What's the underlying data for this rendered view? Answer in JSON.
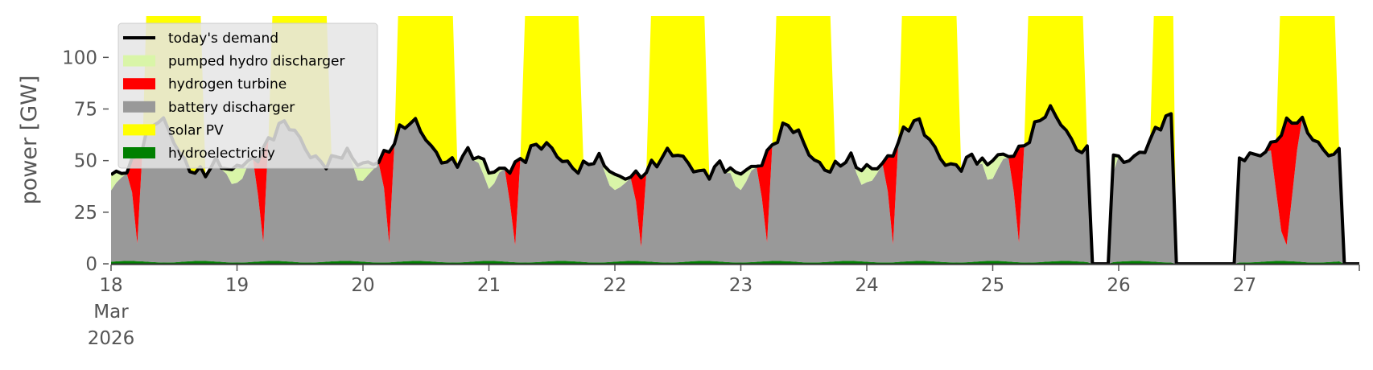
{
  "chart_data": {
    "type": "area",
    "title": "",
    "ylabel": "power [GW]",
    "xlabel": "",
    "ylim": [
      0,
      120
    ],
    "xlim": [
      0,
      9.95
    ],
    "x_unit": "days since 18 Mar 2026",
    "x_ticks": [
      {
        "x": 0,
        "label": "18",
        "sub": [
          "Mar",
          "2026"
        ]
      },
      {
        "x": 1,
        "label": "19"
      },
      {
        "x": 2,
        "label": "20"
      },
      {
        "x": 3,
        "label": "21"
      },
      {
        "x": 4,
        "label": "22"
      },
      {
        "x": 5,
        "label": "23"
      },
      {
        "x": 6,
        "label": "24"
      },
      {
        "x": 7,
        "label": "25"
      },
      {
        "x": 8,
        "label": "26"
      },
      {
        "x": 9,
        "label": "27"
      }
    ],
    "y_ticks": [
      0,
      25,
      50,
      75,
      100
    ],
    "grid": false,
    "legend_position": "upper-left",
    "legend": [
      {
        "label": "today's demand",
        "kind": "line",
        "color": "#000000"
      },
      {
        "label": "pumped hydro discharger",
        "kind": "patch",
        "color": "#d9f5a8"
      },
      {
        "label": "hydrogen turbine",
        "kind": "patch",
        "color": "#ff0000"
      },
      {
        "label": "battery discharger",
        "kind": "patch",
        "color": "#999999"
      },
      {
        "label": "solar PV",
        "kind": "patch",
        "color": "#ffff00"
      },
      {
        "label": "hydroelectricity",
        "kind": "patch",
        "color": "#008000"
      }
    ],
    "colors": {
      "pumped_hydro": "#d9f5a8",
      "hydrogen": "#ff0000",
      "battery": "#999999",
      "solar": "#ffff00",
      "hydro": "#008000",
      "demand": "#000000"
    },
    "solar_peak_GW": 300,
    "days": [
      {
        "min": 43,
        "peak": 70,
        "minT": 0.04,
        "peakT": 0.38,
        "h2": 0.2,
        "ph": 0.7
      },
      {
        "min": 48,
        "peak": 68,
        "minT": 0.03,
        "peakT": 0.38,
        "h2": 0.2,
        "ph": 0.7
      },
      {
        "min": 48,
        "peak": 69,
        "minT": 0.05,
        "peakT": 0.38,
        "h2": 0.2,
        "ph": 0.7
      },
      {
        "min": 45,
        "peak": 58,
        "minT": 0.18,
        "peakT": 0.42,
        "h2": 0.2,
        "ph": 0.7
      },
      {
        "min": 42,
        "peak": 54,
        "minT": 0.03,
        "peakT": 0.45,
        "h2": 0.2,
        "ph": 0.7
      },
      {
        "min": 45,
        "peak": 67,
        "minT": 0.0,
        "peakT": 0.38,
        "h2": 0.22,
        "ph": 0.7
      },
      {
        "min": 46,
        "peak": 69,
        "minT": 0.02,
        "peakT": 0.38,
        "h2": 0.2,
        "ph": 0.7
      },
      {
        "min": 52,
        "peak": 74,
        "minT": 0.02,
        "peakT": 0.45,
        "h2": 0.2,
        "ph": 0.7
      },
      {
        "min": 50,
        "peak": 71,
        "minT": 0.02,
        "peakT": 0.4,
        "h2": 0.0,
        "ph": 0.0
      },
      {
        "min": 52,
        "peak": 70,
        "minT": 0.03,
        "peakT": 0.4,
        "h2": 0.8,
        "ph": 0.0
      }
    ]
  }
}
